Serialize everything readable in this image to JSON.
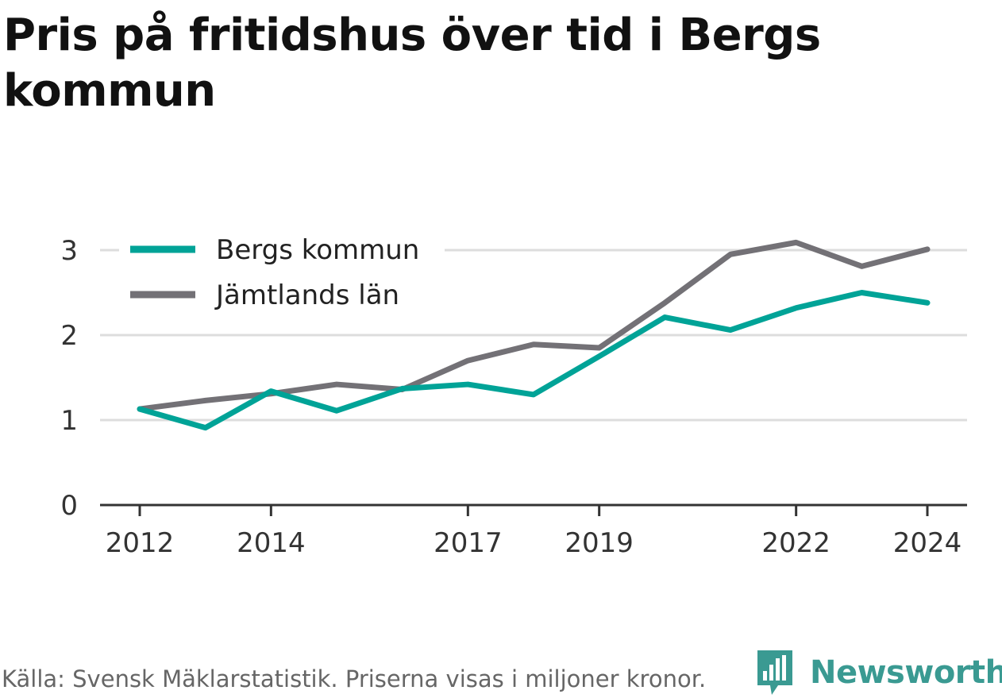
{
  "title": "Pris på fritidshus över tid i Bergs kommun",
  "source": "Källa: Svensk Mäklarstatistik. Priserna visas i miljoner kronor.",
  "brand": "Newsworthy",
  "colors": {
    "bergs": "#00a397",
    "jamtland": "#737176",
    "brand": "#3a9a92",
    "grid": "#dddddd",
    "axis": "#333333"
  },
  "chart_data": {
    "type": "line",
    "title": "Pris på fritidshus över tid i Bergs kommun",
    "xlabel": "",
    "ylabel": "",
    "x": [
      2012,
      2013,
      2014,
      2015,
      2016,
      2017,
      2018,
      2019,
      2020,
      2021,
      2022,
      2023,
      2024
    ],
    "xticks": [
      "2012",
      "2014",
      "2017",
      "2019",
      "2022",
      "2024"
    ],
    "yticks": [
      "0",
      "1",
      "2",
      "3"
    ],
    "ylim": [
      0,
      3.3
    ],
    "grid": true,
    "legend_position": "top-left",
    "series": [
      {
        "name": "Bergs kommun",
        "values": [
          1.13,
          0.91,
          1.34,
          1.11,
          1.37,
          1.42,
          1.3,
          1.75,
          2.21,
          2.06,
          2.32,
          2.5,
          2.38
        ]
      },
      {
        "name": "Jämtlands län",
        "values": [
          1.13,
          1.23,
          1.31,
          1.42,
          1.36,
          1.7,
          1.89,
          1.85,
          2.38,
          2.95,
          3.09,
          2.81,
          3.01
        ]
      }
    ]
  }
}
